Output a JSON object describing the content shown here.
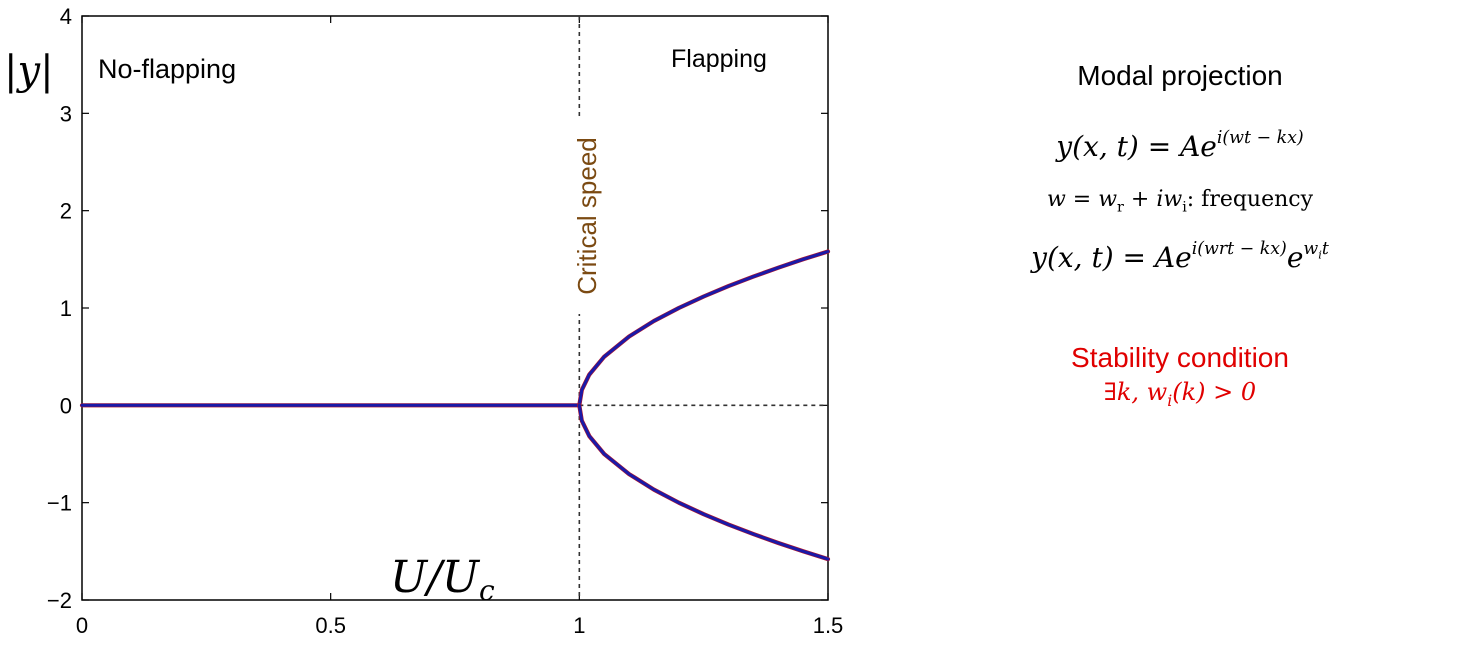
{
  "chart_data": {
    "type": "line",
    "xlim": [
      0,
      1.5
    ],
    "ylim": [
      -2,
      4
    ],
    "xticks": [
      "0",
      "0.5",
      "1",
      "1.5"
    ],
    "yticks": [
      "4",
      "3",
      "2",
      "1",
      "0",
      "−1",
      "−2"
    ],
    "xlabel": "U/U_c",
    "ylabel": "|y|",
    "grid": false,
    "critical_x": 1,
    "series": [
      {
        "x": [
          0,
          0.2,
          0.4,
          0.6,
          0.8,
          1.0
        ],
        "y": [
          0,
          0,
          0,
          0,
          0,
          0
        ]
      },
      {
        "x": [
          1.0,
          1.005,
          1.02,
          1.05,
          1.1,
          1.15,
          1.2,
          1.25,
          1.3,
          1.35,
          1.4,
          1.45,
          1.5
        ],
        "y": [
          0,
          0.158,
          0.316,
          0.5,
          0.707,
          0.866,
          1.0,
          1.118,
          1.225,
          1.323,
          1.414,
          1.5,
          1.58
        ]
      },
      {
        "x": [
          1.0,
          1.005,
          1.02,
          1.05,
          1.1,
          1.15,
          1.2,
          1.25,
          1.3,
          1.35,
          1.4,
          1.45,
          1.5
        ],
        "y": [
          0,
          -0.158,
          -0.316,
          -0.5,
          -0.707,
          -0.866,
          -1.0,
          -1.118,
          -1.225,
          -1.323,
          -1.414,
          -1.5,
          -1.58
        ]
      }
    ],
    "annotations": {
      "no_flapping": "No-flapping",
      "flapping": "Flapping",
      "critical": "Critical speed"
    },
    "colors": {
      "curve": "#1a1aa8",
      "curve_edge": "#b0142a",
      "critical": "#7b4a12",
      "stability": "#e00000"
    }
  },
  "panel": {
    "title": "Modal projection",
    "stability_title": "Stability condition"
  }
}
